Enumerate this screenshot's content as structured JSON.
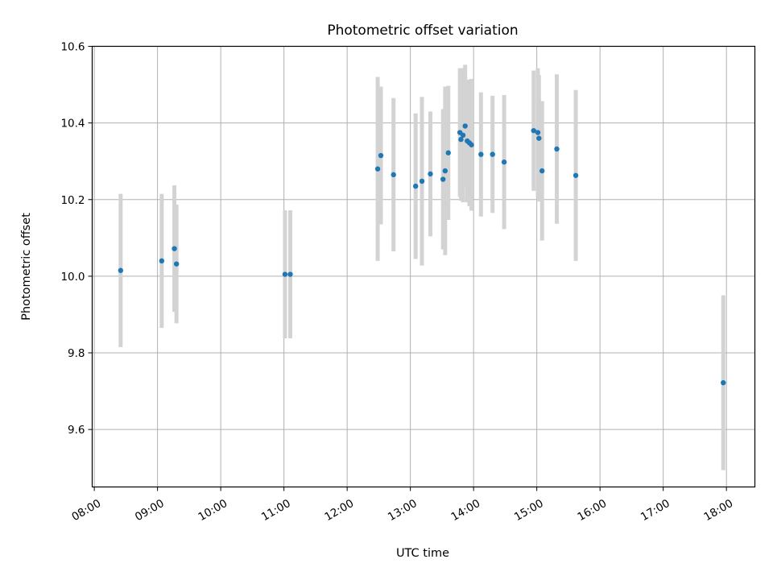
{
  "chart_data": {
    "type": "scatter",
    "title": "Photometric offset variation",
    "xlabel": "UTC time",
    "ylabel": "Photometric offset",
    "x_ticks": [
      "08:00",
      "09:00",
      "10:00",
      "11:00",
      "12:00",
      "13:00",
      "14:00",
      "15:00",
      "16:00",
      "17:00",
      "18:00"
    ],
    "y_ticks": [
      "9.6",
      "9.8",
      "10.0",
      "10.2",
      "10.4",
      "10.6"
    ],
    "xlim": [
      "07:58",
      "18:27"
    ],
    "ylim": [
      9.45,
      10.6
    ],
    "grid": true,
    "marker_color": "#1f77b4",
    "errorbar_color": "#d3d3d3",
    "points": [
      {
        "x": "08:25",
        "y": 10.015,
        "err": 0.2
      },
      {
        "x": "09:04",
        "y": 10.04,
        "err": 0.175
      },
      {
        "x": "09:16",
        "y": 10.072,
        "err": 0.165
      },
      {
        "x": "09:18",
        "y": 10.032,
        "err": 0.155
      },
      {
        "x": "11:01",
        "y": 10.005,
        "err": 0.167
      },
      {
        "x": "11:06",
        "y": 10.005,
        "err": 0.167
      },
      {
        "x": "12:29",
        "y": 10.28,
        "err": 0.24
      },
      {
        "x": "12:32",
        "y": 10.315,
        "err": 0.18
      },
      {
        "x": "12:44",
        "y": 10.265,
        "err": 0.2
      },
      {
        "x": "13:05",
        "y": 10.235,
        "err": 0.19
      },
      {
        "x": "13:11",
        "y": 10.248,
        "err": 0.22
      },
      {
        "x": "13:19",
        "y": 10.267,
        "err": 0.163
      },
      {
        "x": "13:31",
        "y": 10.253,
        "err": 0.183
      },
      {
        "x": "13:33",
        "y": 10.275,
        "err": 0.22
      },
      {
        "x": "13:36",
        "y": 10.322,
        "err": 0.175
      },
      {
        "x": "13:47",
        "y": 10.375,
        "err": 0.168
      },
      {
        "x": "13:48",
        "y": 10.357,
        "err": 0.16
      },
      {
        "x": "13:50",
        "y": 10.368,
        "err": 0.175
      },
      {
        "x": "13:52",
        "y": 10.392,
        "err": 0.16
      },
      {
        "x": "13:54",
        "y": 10.353,
        "err": 0.16
      },
      {
        "x": "13:56",
        "y": 10.348,
        "err": 0.165
      },
      {
        "x": "13:58",
        "y": 10.343,
        "err": 0.172
      },
      {
        "x": "14:07",
        "y": 10.318,
        "err": 0.162
      },
      {
        "x": "14:18",
        "y": 10.318,
        "err": 0.153
      },
      {
        "x": "14:29",
        "y": 10.298,
        "err": 0.175
      },
      {
        "x": "14:57",
        "y": 10.38,
        "err": 0.157
      },
      {
        "x": "15:01",
        "y": 10.375,
        "err": 0.168
      },
      {
        "x": "15:02",
        "y": 10.36,
        "err": 0.165
      },
      {
        "x": "15:05",
        "y": 10.275,
        "err": 0.182
      },
      {
        "x": "15:19",
        "y": 10.332,
        "err": 0.195
      },
      {
        "x": "15:37",
        "y": 10.263,
        "err": 0.223
      },
      {
        "x": "17:57",
        "y": 9.722,
        "err": 0.228
      }
    ]
  }
}
